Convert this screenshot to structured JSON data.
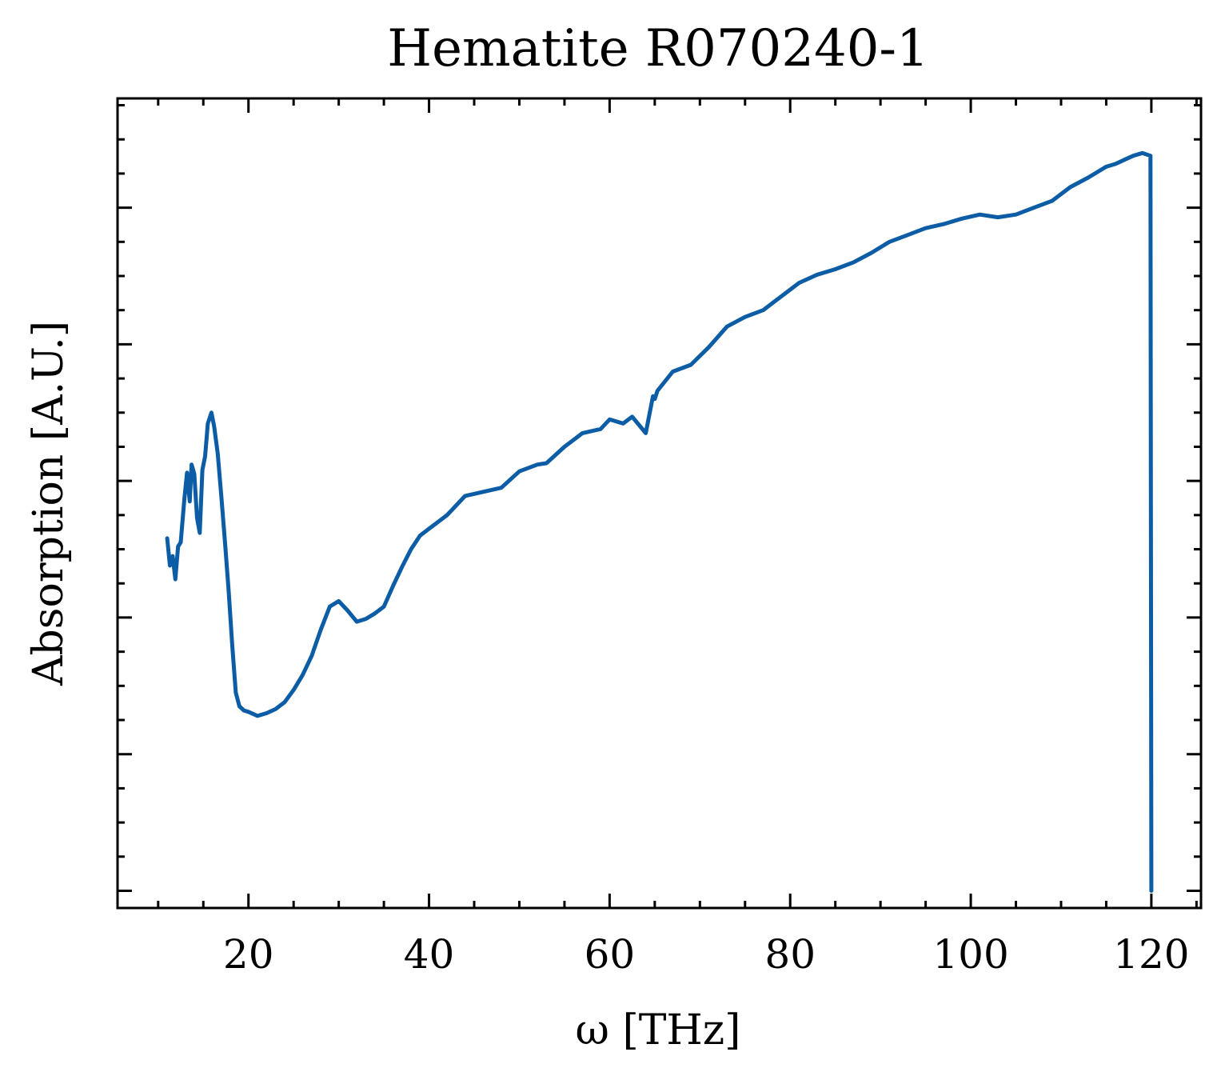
{
  "chart_data": {
    "type": "line",
    "title": "Hematite R070240-1",
    "xlabel": "ω [THz]",
    "ylabel": "Absorption [A.U.]",
    "xlim": [
      5.5,
      125.5
    ],
    "ylim": [
      -0.126,
      5.8
    ],
    "xticks": [
      20,
      40,
      60,
      80,
      100,
      120
    ],
    "yticks_labeled": false,
    "ytick_values": [
      0,
      1,
      2,
      3,
      4,
      5
    ],
    "grid": false,
    "line_color": "#0C5DA5",
    "series": [
      {
        "x": [
          11,
          11.3,
          11.6,
          11.9,
          12.2,
          12.5,
          12.9,
          13.2,
          13.5,
          13.7,
          14.0,
          14.3,
          14.6,
          14.9,
          15.2,
          15.5,
          15.9,
          16.2,
          16.6,
          17.0,
          17.4,
          17.8,
          18.2,
          18.6,
          19.0,
          19.5,
          20.0,
          21.0,
          22.0,
          23.0,
          24.0,
          25.0,
          26.0,
          27.0,
          28.0,
          29.0,
          30.0,
          31.0,
          32.0,
          33.0,
          34.0,
          35.0,
          36.0,
          37.0,
          38.0,
          39.0,
          40.0,
          41.0,
          42.0,
          43.0,
          44.0,
          46.0,
          48.0,
          50.0,
          52.0,
          53.0,
          55.0,
          57.0,
          59.0,
          60.0,
          61.5,
          62.5,
          64.0,
          64.8,
          65.0,
          65.3,
          67.0,
          69.0,
          71.0,
          73.0,
          75.0,
          77.0,
          79.0,
          81.0,
          83.0,
          85.0,
          87.0,
          89.0,
          91.0,
          93.0,
          95.0,
          97.0,
          99.0,
          101.0,
          103.0,
          105.0,
          107.0,
          109.0,
          111.0,
          113.0,
          115.0,
          116.0,
          117.0,
          118.0,
          119.0,
          119.9,
          120.0
        ],
        "y": [
          2.58,
          2.38,
          2.45,
          2.28,
          2.52,
          2.55,
          2.87,
          3.06,
          2.85,
          3.12,
          3.05,
          2.73,
          2.62,
          3.08,
          3.18,
          3.42,
          3.5,
          3.4,
          3.2,
          2.88,
          2.55,
          2.2,
          1.8,
          1.45,
          1.35,
          1.32,
          1.31,
          1.28,
          1.3,
          1.33,
          1.38,
          1.47,
          1.58,
          1.72,
          1.91,
          2.08,
          2.12,
          2.05,
          1.97,
          1.99,
          2.03,
          2.08,
          2.23,
          2.37,
          2.5,
          2.6,
          2.65,
          2.7,
          2.75,
          2.82,
          2.89,
          2.92,
          2.95,
          3.07,
          3.12,
          3.13,
          3.25,
          3.35,
          3.38,
          3.45,
          3.42,
          3.47,
          3.35,
          3.62,
          3.6,
          3.66,
          3.8,
          3.85,
          3.98,
          4.13,
          4.2,
          4.25,
          4.35,
          4.45,
          4.51,
          4.55,
          4.6,
          4.67,
          4.75,
          4.8,
          4.85,
          4.88,
          4.92,
          4.95,
          4.93,
          4.95,
          5.0,
          5.05,
          5.15,
          5.22,
          5.3,
          5.32,
          5.35,
          5.38,
          5.4,
          5.38,
          0.0
        ]
      }
    ]
  }
}
